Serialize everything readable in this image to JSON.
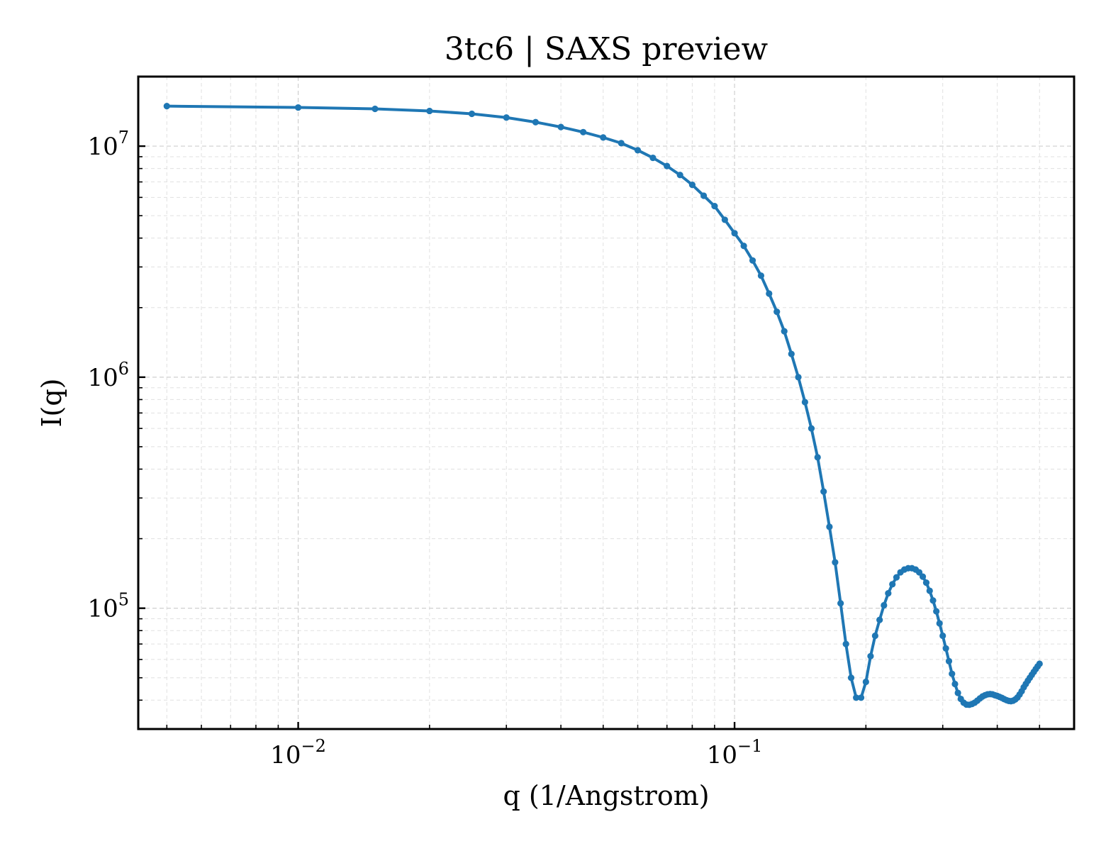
{
  "chart_data": {
    "type": "line",
    "title": "3tc6 | SAXS preview",
    "xlabel": "q (1/Angstrom)",
    "ylabel": "I(q)",
    "xscale": "log",
    "yscale": "log",
    "xlim": [
      0.0043,
      0.6
    ],
    "ylim": [
      30000,
      20000000
    ],
    "grid": true,
    "x_ticks": [
      {
        "value": 0.01,
        "base": "10",
        "exp": "−2"
      },
      {
        "value": 0.1,
        "base": "10",
        "exp": "−1"
      }
    ],
    "y_ticks": [
      {
        "value": 100000,
        "base": "10",
        "exp": "5"
      },
      {
        "value": 1000000,
        "base": "10",
        "exp": "6"
      },
      {
        "value": 10000000,
        "base": "10",
        "exp": "7"
      }
    ],
    "line_color": "#1f77b4",
    "series": [
      {
        "x": [
          0.005,
          0.01,
          0.015,
          0.02,
          0.025,
          0.03,
          0.035,
          0.04,
          0.045,
          0.05,
          0.055,
          0.06,
          0.065,
          0.07,
          0.075,
          0.08,
          0.085,
          0.09,
          0.095,
          0.1,
          0.105,
          0.11,
          0.115,
          0.12,
          0.125,
          0.13,
          0.135,
          0.14,
          0.145,
          0.15,
          0.155,
          0.16,
          0.165,
          0.17,
          0.175,
          0.18,
          0.185,
          0.19,
          0.195,
          0.2,
          0.205,
          0.21,
          0.215,
          0.22,
          0.225,
          0.23,
          0.235,
          0.24,
          0.245,
          0.25,
          0.255,
          0.26,
          0.265,
          0.27,
          0.275,
          0.28,
          0.285,
          0.29,
          0.295,
          0.3,
          0.305,
          0.31,
          0.315,
          0.32,
          0.325,
          0.33,
          0.335,
          0.34,
          0.345,
          0.35,
          0.355,
          0.36,
          0.365,
          0.37,
          0.375,
          0.38,
          0.385,
          0.39,
          0.395,
          0.4,
          0.405,
          0.41,
          0.415,
          0.42,
          0.425,
          0.43,
          0.435,
          0.44,
          0.445,
          0.45,
          0.455,
          0.46,
          0.465,
          0.47,
          0.475,
          0.48,
          0.485,
          0.49,
          0.495,
          0.5
        ],
        "y": [
          14900000,
          14700000,
          14500000,
          14200000,
          13800000,
          13300000,
          12700000,
          12100000,
          11500000,
          10900000,
          10300000,
          9600000,
          8900000,
          8200000,
          7500000,
          6800000,
          6100000,
          5500000,
          4800000,
          4200000,
          3700000,
          3200000,
          2750000,
          2300000,
          1920000,
          1580000,
          1260000,
          1000000,
          780000,
          600000,
          450000,
          320000,
          225000,
          158000,
          105000,
          70000,
          50000,
          41000,
          41000,
          48000,
          62000,
          76000,
          89000,
          103000,
          116000,
          127000,
          136000,
          143000,
          147000,
          149000,
          149000,
          147000,
          143000,
          137000,
          129000,
          119000,
          108000,
          97000,
          86000,
          76000,
          67000,
          59000,
          52000,
          47000,
          43000,
          40500,
          39000,
          38300,
          38200,
          38500,
          39000,
          39800,
          40700,
          41500,
          42000,
          42400,
          42500,
          42400,
          42000,
          41700,
          41300,
          40900,
          40400,
          40000,
          39700,
          39600,
          39800,
          40300,
          41100,
          42300,
          43700,
          45500,
          47000,
          48500,
          50000,
          51500,
          53000,
          54500,
          56000,
          57500
        ]
      }
    ]
  }
}
